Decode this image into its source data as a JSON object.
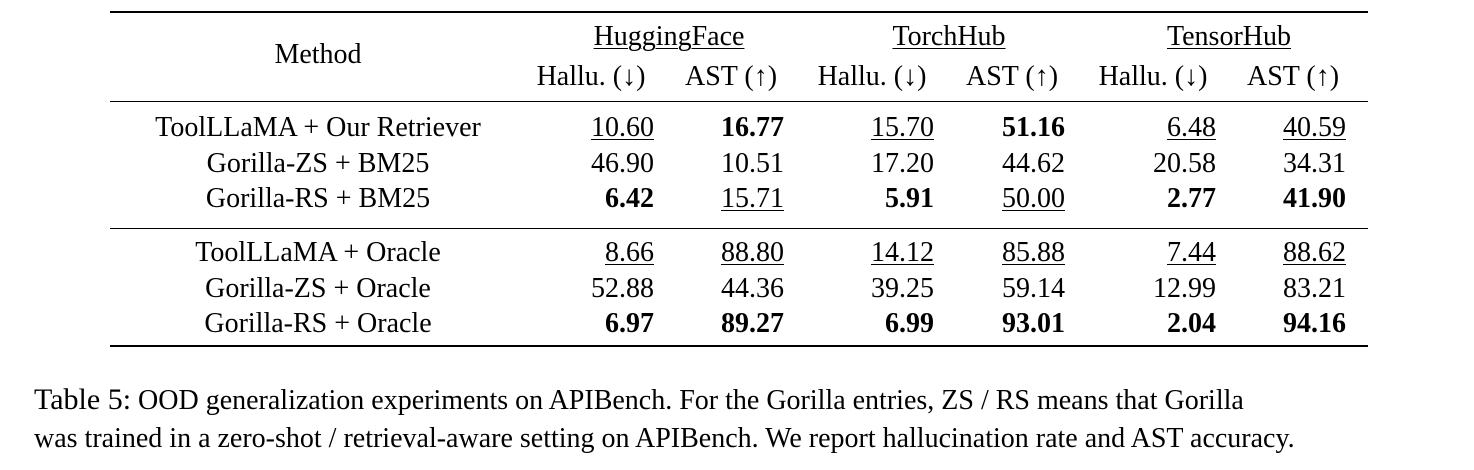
{
  "table": {
    "method_header": "Method",
    "groups": [
      "HuggingFace",
      "TorchHub",
      "TensorHub"
    ],
    "subheaders": [
      "Hallu. (↓)",
      "AST (↑)",
      "Hallu. (↓)",
      "AST (↑)",
      "Hallu. (↓)",
      "AST (↑)"
    ],
    "rows": [
      {
        "method": "ToolLLaMA + Our Retriever",
        "values": [
          {
            "text": "10.60",
            "underline": true
          },
          {
            "text": "16.77",
            "bold": true
          },
          {
            "text": "15.70",
            "underline": true
          },
          {
            "text": "51.16",
            "bold": true
          },
          {
            "text": "6.48",
            "underline": true
          },
          {
            "text": "40.59",
            "underline": true
          }
        ]
      },
      {
        "method": "Gorilla-ZS + BM25",
        "values": [
          {
            "text": "46.90"
          },
          {
            "text": "10.51"
          },
          {
            "text": "17.20"
          },
          {
            "text": "44.62"
          },
          {
            "text": "20.58"
          },
          {
            "text": "34.31"
          }
        ]
      },
      {
        "method": "Gorilla-RS + BM25",
        "values": [
          {
            "text": "6.42",
            "bold": true
          },
          {
            "text": "15.71",
            "underline": true
          },
          {
            "text": "5.91",
            "bold": true
          },
          {
            "text": "50.00",
            "underline": true
          },
          {
            "text": "2.77",
            "bold": true
          },
          {
            "text": "41.90",
            "bold": true
          }
        ]
      },
      {
        "method": "ToolLLaMA + Oracle",
        "values": [
          {
            "text": "8.66",
            "underline": true
          },
          {
            "text": "88.80",
            "underline": true
          },
          {
            "text": "14.12",
            "underline": true
          },
          {
            "text": "85.88",
            "underline": true
          },
          {
            "text": "7.44",
            "underline": true
          },
          {
            "text": "88.62",
            "underline": true
          }
        ]
      },
      {
        "method": "Gorilla-ZS + Oracle",
        "values": [
          {
            "text": "52.88"
          },
          {
            "text": "44.36"
          },
          {
            "text": "39.25"
          },
          {
            "text": "59.14"
          },
          {
            "text": "12.99"
          },
          {
            "text": "83.21"
          }
        ]
      },
      {
        "method": "Gorilla-RS + Oracle",
        "values": [
          {
            "text": "6.97",
            "bold": true
          },
          {
            "text": "89.27",
            "bold": true
          },
          {
            "text": "6.99",
            "bold": true
          },
          {
            "text": "93.01",
            "bold": true
          },
          {
            "text": "2.04",
            "bold": true
          },
          {
            "text": "94.16",
            "bold": true
          }
        ]
      }
    ]
  },
  "caption": {
    "label": "Table 5:",
    "line1": "OOD generalization experiments on APIBench. For the Gorilla entries, ZS / RS means that Gorilla",
    "line2": "was trained in a zero-shot / retrieval-aware setting on APIBench. We report hallucination rate and AST accuracy."
  }
}
